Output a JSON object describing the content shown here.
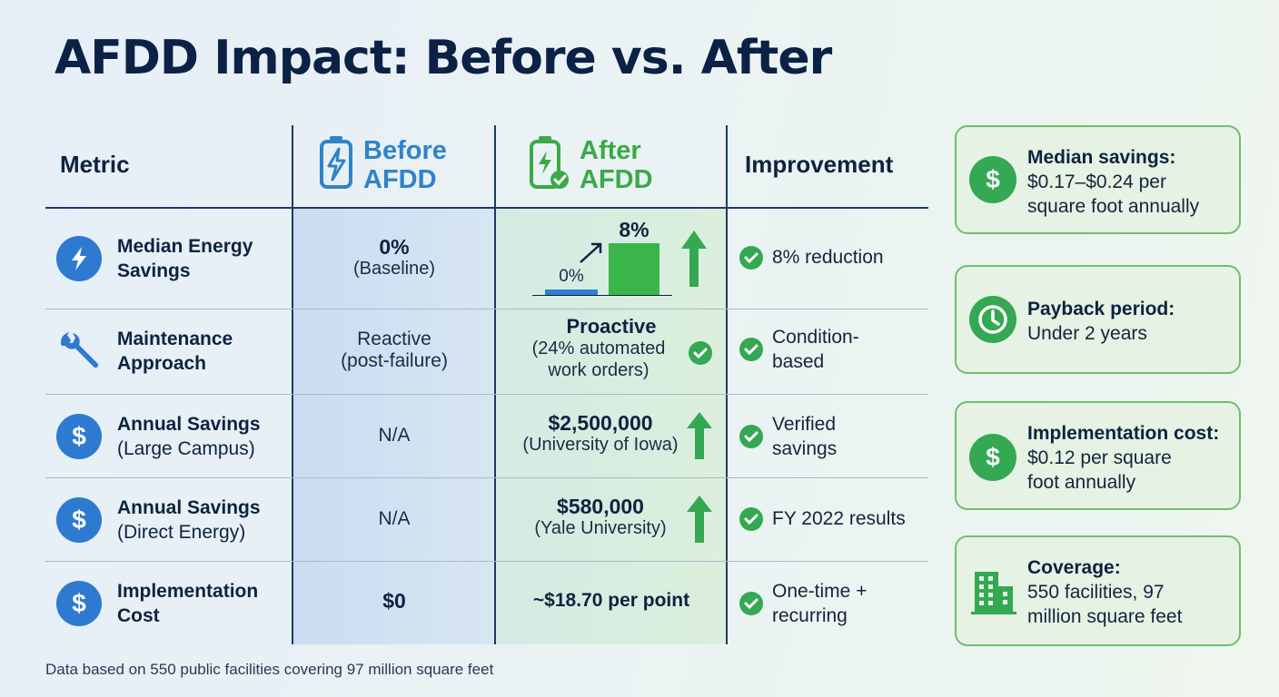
{
  "title": "AFDD Impact: Before vs. After",
  "colors": {
    "navy": "#0b2145",
    "blue": "#2f83c9",
    "green": "#3aaa47",
    "icon_blue": "#2e7ad0"
  },
  "table": {
    "headers": {
      "metric": "Metric",
      "before_line1": "Before",
      "before_line2": "AFDD",
      "after_line1": "After",
      "after_line2": "AFDD",
      "improvement": "Improvement"
    },
    "rows": [
      {
        "icon": "lightning-icon",
        "metric_line1": "Median Energy",
        "metric_line2": "Savings",
        "before_main": "0%",
        "before_sub": "(Baseline)",
        "after_mini_chart": {
          "before_label": "0%",
          "after_label": "8%",
          "before_value": 0,
          "after_value": 8
        },
        "improvement_line1": "8% reduction",
        "improvement_line2": ""
      },
      {
        "icon": "wrench-icon",
        "metric_line1": "Maintenance",
        "metric_line2": "Approach",
        "before_main": "Reactive",
        "before_sub": "(post-failure)",
        "after_main": "Proactive",
        "after_sub1": "(24% automated",
        "after_sub2": "work orders)",
        "improvement_line1": "Condition-",
        "improvement_line2": "based"
      },
      {
        "icon": "dollar-icon",
        "metric_line1": "Annual Savings",
        "metric_line2": "(Large Campus)",
        "before_main": "N/A",
        "after_main": "$2,500,000",
        "after_sub1": "(University of Iowa)",
        "improvement_line1": "Verified",
        "improvement_line2": "savings"
      },
      {
        "icon": "dollar-icon",
        "metric_line1": "Annual Savings",
        "metric_line2": "(Direct Energy)",
        "before_main": "N/A",
        "after_main": "$580,000",
        "after_sub1": "(Yale University)",
        "improvement_line1": "FY 2022 results",
        "improvement_line2": ""
      },
      {
        "icon": "dollar-icon",
        "metric_line1": "Implementation",
        "metric_line2": "Cost",
        "before_main": "$0",
        "after_main": "~$18.70 per point",
        "improvement_line1": "One-time +",
        "improvement_line2": "recurring"
      }
    ]
  },
  "side_cards": [
    {
      "icon": "dollar-icon",
      "title": "Median savings:",
      "line1": "$0.17–$0.24 per",
      "line2": "square foot annually"
    },
    {
      "icon": "clock-icon",
      "title": "Payback period:",
      "line1": "Under 2 years",
      "line2": ""
    },
    {
      "icon": "dollar-icon",
      "title": "Implementation cost:",
      "line1": "$0.12 per square",
      "line2": "foot annually"
    },
    {
      "icon": "building-icon",
      "title": "Coverage:",
      "line1": "550 facilities, 97",
      "line2": "million square feet"
    }
  ],
  "footer": "Data based on 550 public facilities covering 97 million square feet"
}
